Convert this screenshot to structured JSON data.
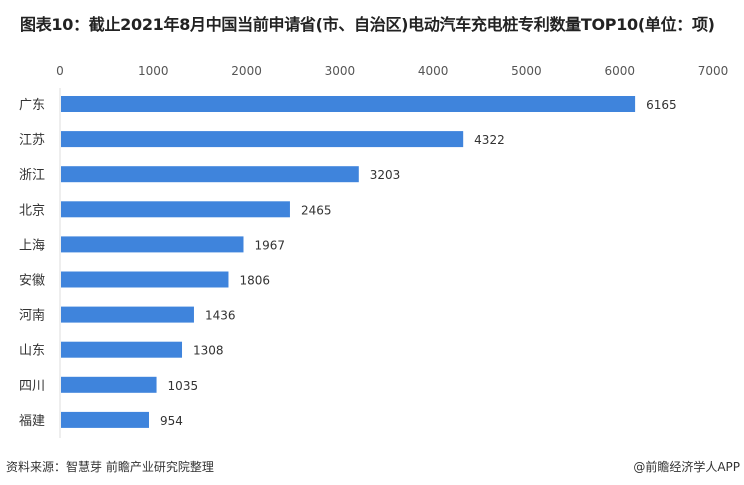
{
  "title": "图表10：截止2021年8月中国当前申请省(市、自治区)电动汽车充电桩专利数量TOP10(单位：项)",
  "source": "资料来源：智慧芽 前瞻产业研究院整理",
  "brand": "@前瞻经济学人APP",
  "chart_data": {
    "type": "bar",
    "orientation": "horizontal",
    "title": "图表10：截止2021年8月中国当前申请省(市、自治区)电动汽车充电桩专利数量TOP10(单位：项)",
    "categories": [
      "广东",
      "江苏",
      "浙江",
      "北京",
      "上海",
      "安徽",
      "河南",
      "山东",
      "四川",
      "福建"
    ],
    "values": [
      6165,
      4322,
      3203,
      2465,
      1967,
      1806,
      1436,
      1308,
      1035,
      954
    ],
    "xlim": [
      0,
      7000
    ],
    "xticks": [
      0,
      1000,
      2000,
      3000,
      4000,
      5000,
      6000,
      7000
    ],
    "axis_position": "top",
    "grid": false,
    "data_labels": true,
    "bar_color": "#3f84dc"
  }
}
